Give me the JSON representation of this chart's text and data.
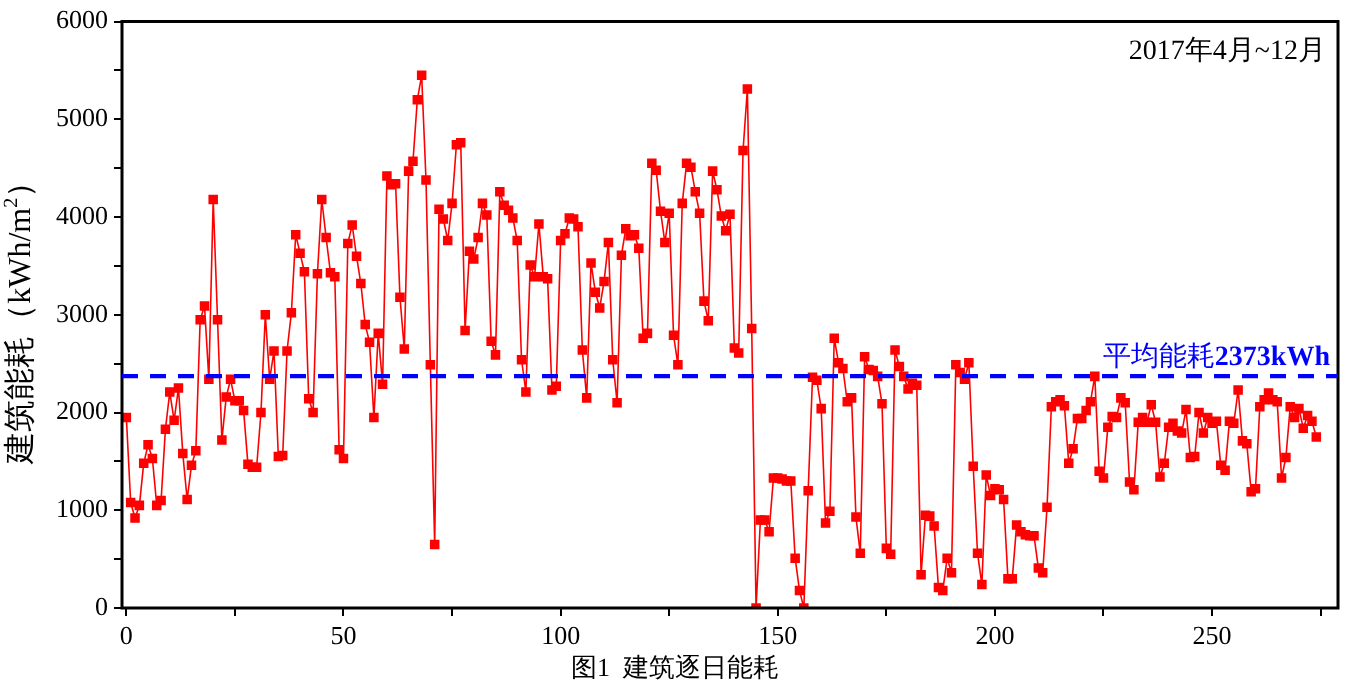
{
  "chart_data": {
    "type": "line",
    "ylabel": "建筑能耗（kWh/m$^{2}$）",
    "annotations": [
      "2017年4月~12月",
      "图1  建筑逐日能耗"
    ],
    "xlim": [
      -1,
      279
    ],
    "xticks": [
      0,
      {
        "value": 25,
        "label": null
      },
      50,
      {
        "value": 75,
        "label": null
      },
      100,
      {
        "value": 125,
        "label": null
      },
      150,
      {
        "value": 175,
        "label": null
      },
      200,
      {
        "value": 225,
        "label": null
      },
      250,
      {
        "value": 275,
        "label": null
      }
    ],
    "ylim": [
      0,
      6000
    ],
    "yticks": [
      0,
      {
        "value": 500,
        "label": null
      },
      1000,
      {
        "value": 1500,
        "label": null
      },
      2000,
      {
        "value": 2500,
        "label": null
      },
      3000,
      {
        "value": 3500,
        "label": null
      },
      4000,
      {
        "value": 4500,
        "label": null
      },
      5000,
      {
        "value": 5500,
        "label": null
      },
      6000
    ],
    "grid": false,
    "legend": false,
    "marker": "square",
    "line_style": "solid",
    "series": [
      {
        "color": "#ff0000",
        "x": [
          0,
          1,
          2,
          3,
          4,
          5,
          6,
          7,
          8,
          9,
          10,
          11,
          12,
          13,
          14,
          15,
          16,
          17,
          18,
          19,
          20,
          21,
          22,
          23,
          24,
          25,
          26,
          27,
          28,
          29,
          30,
          31,
          32,
          33,
          34,
          35,
          36,
          37,
          38,
          39,
          40,
          41,
          42,
          43,
          44,
          45,
          46,
          47,
          48,
          49,
          50,
          51,
          52,
          53,
          54,
          55,
          56,
          57,
          58,
          59,
          60,
          61,
          62,
          63,
          64,
          65,
          66,
          67,
          68,
          69,
          70,
          71,
          72,
          73,
          74,
          75,
          76,
          77,
          78,
          79,
          80,
          81,
          82,
          83,
          84,
          85,
          86,
          87,
          88,
          89,
          90,
          91,
          92,
          93,
          94,
          95,
          96,
          97,
          98,
          99,
          100,
          101,
          102,
          103,
          104,
          105,
          106,
          107,
          108,
          109,
          110,
          111,
          112,
          113,
          114,
          115,
          116,
          117,
          118,
          119,
          120,
          121,
          122,
          123,
          124,
          125,
          126,
          127,
          128,
          129,
          130,
          131,
          132,
          133,
          134,
          135,
          136,
          137,
          138,
          139,
          140,
          141,
          142,
          143,
          144,
          145,
          146,
          147,
          148,
          149,
          150,
          151,
          152,
          153,
          154,
          155,
          156,
          157,
          158,
          159,
          160,
          161,
          162,
          163,
          164,
          165,
          166,
          167,
          168,
          169,
          170,
          171,
          172,
          173,
          174,
          175,
          176,
          177,
          178,
          179,
          180,
          181,
          182,
          183,
          184,
          185,
          186,
          187,
          188,
          189,
          190,
          191,
          192,
          193,
          194,
          195,
          196,
          197,
          198,
          199,
          200,
          201,
          202,
          203,
          204,
          205,
          206,
          207,
          208,
          209,
          210,
          211,
          212,
          213,
          214,
          215,
          216,
          217,
          218,
          219,
          220,
          221,
          222,
          223,
          224,
          225,
          226,
          227,
          228,
          229,
          230,
          231,
          232,
          233,
          234,
          235,
          236,
          237,
          238,
          239,
          240,
          241,
          242,
          243,
          244,
          245,
          246,
          247,
          248,
          249,
          250,
          251,
          252,
          253,
          254,
          255,
          256,
          257,
          258,
          259,
          260,
          261,
          262,
          263,
          264,
          265,
          266,
          267,
          268,
          269,
          270,
          271,
          272,
          273,
          274
        ],
        "values": [
          1950,
          1080,
          920,
          1050,
          1480,
          1670,
          1530,
          1050,
          1100,
          1830,
          2210,
          1920,
          2250,
          1580,
          1110,
          1460,
          1610,
          2950,
          3090,
          2340,
          4180,
          2950,
          1720,
          2160,
          2340,
          2120,
          2120,
          2020,
          1470,
          1440,
          1440,
          2000,
          3000,
          2340,
          2630,
          1550,
          1560,
          2630,
          3020,
          3820,
          3630,
          3440,
          2140,
          2000,
          3420,
          4180,
          3790,
          3430,
          3390,
          1620,
          1530,
          3730,
          3920,
          3600,
          3320,
          2900,
          2720,
          1950,
          2810,
          2290,
          4420,
          4330,
          4340,
          3180,
          2650,
          4470,
          4570,
          5200,
          5450,
          4380,
          2490,
          650,
          4080,
          3980,
          3760,
          4140,
          4740,
          4760,
          2840,
          3650,
          3570,
          3790,
          4140,
          4020,
          2730,
          2590,
          4260,
          4120,
          4070,
          3990,
          3760,
          2540,
          2210,
          3510,
          3390,
          3930,
          3390,
          3370,
          2230,
          2270,
          3760,
          3830,
          3990,
          3980,
          3900,
          2640,
          2150,
          3530,
          3230,
          3070,
          3340,
          3740,
          2540,
          2100,
          3610,
          3880,
          3810,
          3820,
          3680,
          2760,
          2810,
          4550,
          4480,
          4060,
          3740,
          4040,
          2790,
          2490,
          4140,
          4550,
          4510,
          4260,
          4040,
          3140,
          2940,
          4470,
          4280,
          4010,
          3860,
          4030,
          2660,
          2610,
          4680,
          5310,
          2860,
          0,
          900,
          900,
          780,
          1330,
          1330,
          1320,
          1300,
          1300,
          510,
          180,
          0,
          1200,
          2360,
          2330,
          2040,
          870,
          990,
          2760,
          2510,
          2450,
          2110,
          2150,
          930,
          560,
          2570,
          2440,
          2430,
          2370,
          2090,
          610,
          550,
          2640,
          2470,
          2370,
          2240,
          2300,
          2280,
          340,
          950,
          940,
          840,
          210,
          180,
          510,
          360,
          2490,
          2410,
          2340,
          2510,
          1450,
          560,
          240,
          1360,
          1150,
          1220,
          1210,
          1110,
          300,
          300,
          850,
          780,
          750,
          740,
          740,
          410,
          360,
          1030,
          2060,
          2110,
          2130,
          2070,
          1480,
          1630,
          1940,
          1940,
          2020,
          2110,
          2370,
          1400,
          1330,
          1850,
          1960,
          1950,
          2150,
          2100,
          1290,
          1210,
          1900,
          1950,
          1900,
          2080,
          1900,
          1340,
          1480,
          1850,
          1890,
          1810,
          1790,
          2030,
          1540,
          1550,
          2000,
          1790,
          1950,
          1890,
          1910,
          1460,
          1410,
          1910,
          1890,
          2230,
          1710,
          1680,
          1190,
          1220,
          2060,
          2130,
          2200,
          2130,
          2110,
          1330,
          1540,
          2060,
          1950,
          2040,
          1840,
          1970,
          1910,
          1750
        ]
      }
    ],
    "ref_lines": [
      {
        "axis": "y",
        "value": 2373,
        "label": "平均能耗2373kWh",
        "color": "#0000ff",
        "line_style": "dashed"
      }
    ]
  }
}
